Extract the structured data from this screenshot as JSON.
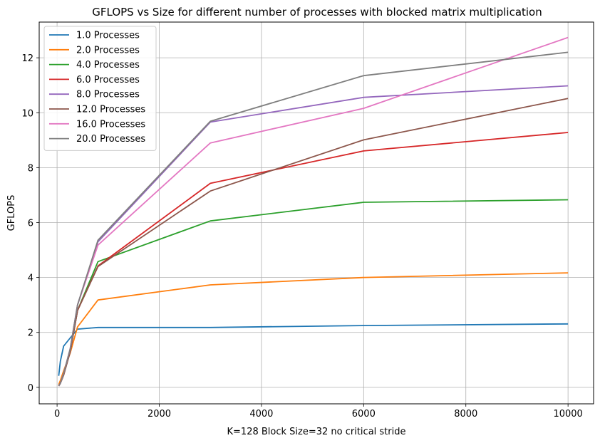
{
  "chart_data": {
    "type": "line",
    "title": "GFLOPS vs Size for different number of processes with blocked matrix multiplication",
    "xlabel": "K=128 Block Size=32 no critical stride",
    "ylabel": "GFLOPS",
    "xlim": [
      -350,
      10500
    ],
    "ylim": [
      -0.6,
      13.3
    ],
    "xticks": [
      0,
      2000,
      4000,
      6000,
      8000,
      10000
    ],
    "yticks": [
      0,
      2,
      4,
      6,
      8,
      10,
      12
    ],
    "grid": true,
    "legend_position": "top-left",
    "x": [
      32,
      64,
      128,
      256,
      400,
      800,
      3000,
      6000,
      10000
    ],
    "series": [
      {
        "name": "1.0 Processes",
        "color": "#1f77b4",
        "values": [
          0.42,
          0.95,
          1.5,
          1.8,
          2.12,
          2.18,
          2.18,
          2.25,
          2.31
        ]
      },
      {
        "name": "2.0 Processes",
        "color": "#ff7f0e",
        "values": [
          0.1,
          0.25,
          0.6,
          1.25,
          2.2,
          3.18,
          3.73,
          4.0,
          4.17
        ]
      },
      {
        "name": "4.0 Processes",
        "color": "#2ca02c",
        "values": [
          0.05,
          0.15,
          0.45,
          1.3,
          2.8,
          4.58,
          6.06,
          6.74,
          6.83
        ]
      },
      {
        "name": "6.0 Processes",
        "color": "#d62728",
        "values": [
          0.05,
          0.15,
          0.45,
          1.3,
          2.8,
          4.42,
          7.43,
          8.61,
          9.28
        ]
      },
      {
        "name": "8.0 Processes",
        "color": "#9467bd",
        "values": [
          0.05,
          0.15,
          0.5,
          1.4,
          3.0,
          5.3,
          9.66,
          10.56,
          10.98
        ]
      },
      {
        "name": "12.0 Processes",
        "color": "#8c564b",
        "values": [
          0.05,
          0.15,
          0.45,
          1.3,
          2.8,
          4.4,
          7.15,
          9.01,
          10.52
        ]
      },
      {
        "name": "16.0 Processes",
        "color": "#e377c2",
        "values": [
          0.05,
          0.15,
          0.5,
          1.4,
          3.0,
          5.18,
          8.9,
          10.16,
          12.74
        ]
      },
      {
        "name": "20.0 Processes",
        "color": "#7f7f7f",
        "values": [
          0.05,
          0.15,
          0.5,
          1.4,
          3.0,
          5.36,
          9.69,
          11.35,
          12.2
        ]
      }
    ]
  }
}
